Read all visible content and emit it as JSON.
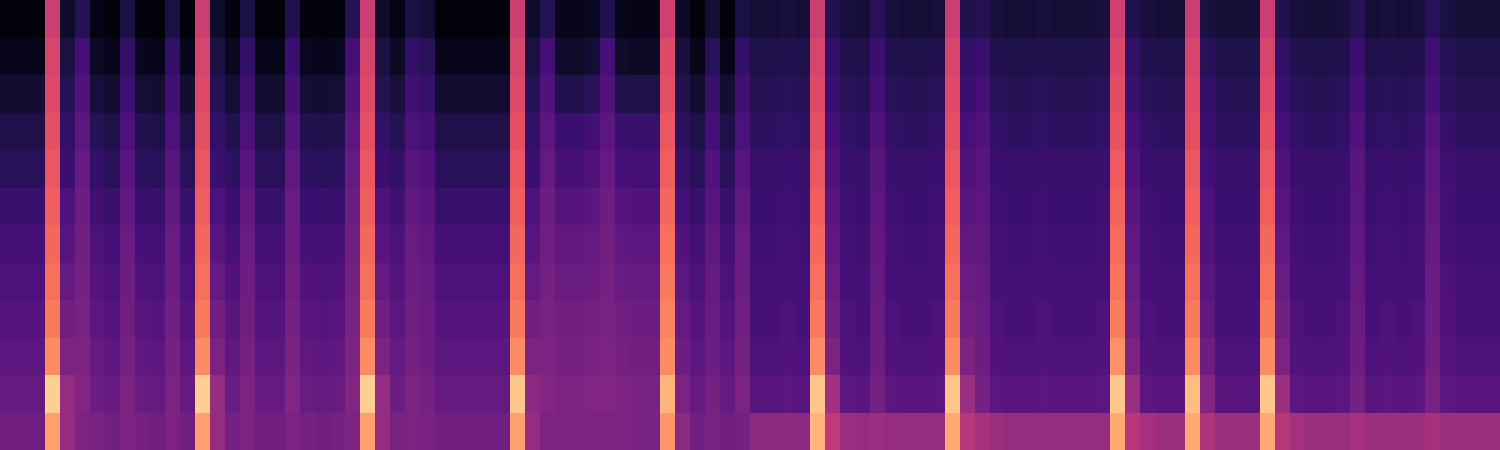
{
  "chart_data": {
    "type": "heatmap",
    "color": "magma",
    "tick_labels": false,
    "zlim": [
      0,
      100
    ],
    "z": [
      [
        2,
        2,
        2,
        55,
        8,
        15,
        4,
        2,
        12,
        3,
        2,
        12,
        2,
        55,
        8,
        3,
        12,
        2,
        2,
        14,
        3,
        2,
        3,
        15,
        55,
        8,
        4,
        12,
        10,
        2,
        2,
        2,
        2,
        2,
        55,
        8,
        15,
        5,
        5,
        6,
        14,
        5,
        4,
        4,
        56,
        7,
        2,
        10,
        2,
        12,
        10,
        10,
        11,
        10,
        55,
        14,
        11,
        10,
        16,
        11,
        10,
        10,
        11,
        55,
        14,
        15,
        11,
        10,
        10,
        11,
        10,
        10,
        10,
        11,
        56,
        14,
        11,
        10,
        10,
        55,
        12,
        10,
        10,
        10,
        55,
        14,
        11,
        10,
        10,
        11,
        15,
        10,
        11,
        10,
        11,
        16,
        12,
        10,
        10,
        10
      ],
      [
        5,
        5,
        5,
        58,
        12,
        22,
        7,
        5,
        18,
        6,
        5,
        18,
        5,
        58,
        12,
        6,
        18,
        5,
        5,
        20,
        6,
        5,
        6,
        22,
        58,
        12,
        7,
        18,
        16,
        5,
        5,
        5,
        5,
        5,
        58,
        12,
        22,
        8,
        8,
        10,
        22,
        8,
        7,
        7,
        60,
        11,
        5,
        16,
        5,
        18,
        13,
        13,
        14,
        13,
        58,
        18,
        14,
        13,
        20,
        14,
        13,
        13,
        14,
        58,
        18,
        20,
        14,
        13,
        13,
        14,
        13,
        13,
        13,
        14,
        59,
        18,
        14,
        13,
        13,
        58,
        16,
        13,
        13,
        13,
        58,
        18,
        14,
        13,
        13,
        14,
        20,
        13,
        14,
        13,
        14,
        21,
        15,
        13,
        13,
        13
      ],
      [
        9,
        9,
        9,
        60,
        15,
        25,
        11,
        9,
        21,
        10,
        9,
        21,
        9,
        60,
        15,
        10,
        21,
        9,
        9,
        23,
        10,
        9,
        10,
        25,
        60,
        15,
        11,
        21,
        19,
        9,
        9,
        9,
        9,
        9,
        60,
        15,
        25,
        14,
        14,
        16,
        25,
        14,
        13,
        13,
        62,
        14,
        9,
        19,
        9,
        21,
        15,
        15,
        16,
        15,
        60,
        20,
        16,
        15,
        22,
        16,
        15,
        15,
        16,
        60,
        20,
        22,
        16,
        15,
        15,
        16,
        15,
        15,
        15,
        16,
        61,
        20,
        16,
        15,
        15,
        60,
        18,
        15,
        15,
        15,
        60,
        20,
        16,
        15,
        15,
        16,
        22,
        15,
        16,
        15,
        16,
        23,
        17,
        15,
        15,
        15
      ],
      [
        13,
        13,
        13,
        62,
        18,
        28,
        15,
        13,
        24,
        14,
        13,
        24,
        13,
        62,
        18,
        14,
        24,
        13,
        13,
        26,
        14,
        13,
        14,
        28,
        62,
        18,
        15,
        24,
        22,
        13,
        13,
        13,
        13,
        13,
        62,
        18,
        28,
        20,
        20,
        22,
        28,
        20,
        19,
        19,
        64,
        17,
        13,
        22,
        13,
        24,
        17,
        17,
        18,
        17,
        62,
        23,
        18,
        17,
        25,
        18,
        17,
        17,
        18,
        62,
        23,
        25,
        18,
        17,
        17,
        18,
        17,
        17,
        17,
        18,
        63,
        23,
        18,
        17,
        17,
        62,
        20,
        17,
        17,
        17,
        62,
        23,
        18,
        17,
        17,
        18,
        25,
        17,
        18,
        17,
        18,
        26,
        19,
        17,
        17,
        17
      ],
      [
        16,
        16,
        16,
        64,
        20,
        30,
        18,
        16,
        27,
        17,
        16,
        27,
        16,
        64,
        20,
        17,
        27,
        16,
        16,
        29,
        17,
        16,
        17,
        30,
        64,
        20,
        18,
        27,
        25,
        16,
        16,
        16,
        16,
        16,
        64,
        20,
        30,
        23,
        23,
        25,
        30,
        23,
        22,
        22,
        66,
        19,
        16,
        25,
        16,
        27,
        19,
        19,
        20,
        19,
        64,
        25,
        20,
        19,
        27,
        20,
        19,
        19,
        20,
        64,
        25,
        27,
        20,
        19,
        19,
        20,
        19,
        19,
        19,
        20,
        65,
        25,
        20,
        19,
        19,
        64,
        22,
        19,
        19,
        19,
        64,
        25,
        20,
        19,
        19,
        20,
        27,
        19,
        20,
        19,
        20,
        28,
        21,
        19,
        19,
        19
      ],
      [
        19,
        19,
        19,
        66,
        24,
        32,
        21,
        19,
        29,
        20,
        19,
        29,
        19,
        66,
        24,
        20,
        29,
        19,
        19,
        31,
        20,
        19,
        20,
        32,
        66,
        24,
        21,
        29,
        27,
        19,
        19,
        19,
        19,
        19,
        66,
        24,
        32,
        26,
        26,
        28,
        32,
        26,
        25,
        25,
        68,
        22,
        19,
        27,
        19,
        29,
        20,
        20,
        21,
        20,
        66,
        27,
        21,
        20,
        28,
        21,
        20,
        20,
        21,
        66,
        27,
        28,
        21,
        20,
        20,
        21,
        20,
        20,
        20,
        21,
        67,
        27,
        21,
        20,
        20,
        66,
        24,
        20,
        20,
        20,
        66,
        27,
        21,
        20,
        20,
        21,
        28,
        20,
        21,
        20,
        21,
        29,
        22,
        20,
        20,
        20
      ],
      [
        22,
        22,
        22,
        68,
        27,
        33,
        24,
        22,
        31,
        23,
        22,
        31,
        22,
        68,
        27,
        23,
        31,
        22,
        22,
        32,
        23,
        22,
        23,
        33,
        68,
        27,
        24,
        31,
        29,
        22,
        22,
        22,
        22,
        22,
        68,
        27,
        33,
        29,
        29,
        30,
        33,
        29,
        28,
        28,
        70,
        25,
        22,
        29,
        22,
        31,
        21,
        21,
        22,
        21,
        68,
        29,
        22,
        21,
        29,
        22,
        21,
        21,
        22,
        68,
        29,
        29,
        22,
        21,
        21,
        22,
        21,
        21,
        21,
        22,
        69,
        29,
        22,
        21,
        21,
        68,
        25,
        21,
        21,
        21,
        68,
        29,
        22,
        21,
        21,
        22,
        29,
        21,
        22,
        21,
        22,
        30,
        23,
        21,
        21,
        21
      ],
      [
        24,
        24,
        24,
        70,
        30,
        34,
        26,
        24,
        32,
        25,
        24,
        32,
        24,
        70,
        30,
        25,
        32,
        24,
        24,
        33,
        25,
        24,
        25,
        34,
        70,
        30,
        26,
        32,
        30,
        24,
        24,
        24,
        24,
        24,
        70,
        30,
        34,
        31,
        31,
        32,
        34,
        31,
        30,
        30,
        72,
        28,
        24,
        30,
        24,
        32,
        22,
        22,
        23,
        22,
        70,
        31,
        23,
        22,
        30,
        23,
        22,
        22,
        23,
        70,
        31,
        30,
        23,
        22,
        22,
        23,
        22,
        22,
        22,
        23,
        71,
        31,
        23,
        22,
        22,
        70,
        27,
        22,
        22,
        22,
        70,
        31,
        23,
        22,
        22,
        23,
        30,
        22,
        23,
        22,
        23,
        31,
        24,
        22,
        22,
        22
      ],
      [
        26,
        26,
        26,
        72,
        33,
        35,
        28,
        26,
        33,
        27,
        26,
        33,
        26,
        72,
        33,
        27,
        33,
        26,
        26,
        34,
        27,
        26,
        27,
        35,
        72,
        33,
        28,
        33,
        31,
        26,
        26,
        26,
        26,
        26,
        72,
        33,
        35,
        33,
        33,
        34,
        35,
        33,
        32,
        32,
        74,
        30,
        26,
        31,
        26,
        33,
        23,
        23,
        24,
        23,
        72,
        33,
        24,
        23,
        31,
        24,
        23,
        23,
        24,
        72,
        33,
        31,
        24,
        23,
        23,
        24,
        23,
        23,
        23,
        24,
        73,
        33,
        24,
        23,
        23,
        72,
        29,
        23,
        23,
        23,
        72,
        33,
        24,
        23,
        23,
        24,
        31,
        23,
        24,
        23,
        24,
        32,
        25,
        23,
        23,
        23
      ],
      [
        28,
        28,
        28,
        76,
        36,
        36,
        30,
        28,
        34,
        29,
        28,
        34,
        28,
        76,
        36,
        29,
        34,
        28,
        28,
        35,
        29,
        28,
        29,
        36,
        76,
        36,
        30,
        34,
        32,
        28,
        28,
        28,
        28,
        28,
        76,
        36,
        36,
        34,
        34,
        35,
        36,
        34,
        33,
        33,
        76,
        32,
        28,
        32,
        28,
        34,
        24,
        24,
        25,
        24,
        76,
        36,
        25,
        24,
        32,
        25,
        24,
        24,
        25,
        76,
        36,
        32,
        25,
        24,
        24,
        25,
        24,
        24,
        24,
        25,
        77,
        36,
        25,
        24,
        24,
        76,
        32,
        24,
        24,
        24,
        76,
        36,
        25,
        24,
        24,
        25,
        32,
        24,
        25,
        24,
        25,
        33,
        26,
        24,
        24,
        24
      ],
      [
        30,
        30,
        30,
        90,
        42,
        38,
        32,
        30,
        36,
        31,
        30,
        36,
        30,
        90,
        42,
        31,
        36,
        30,
        30,
        37,
        31,
        30,
        31,
        38,
        90,
        42,
        32,
        36,
        34,
        30,
        30,
        30,
        30,
        30,
        88,
        40,
        38,
        36,
        36,
        37,
        38,
        36,
        35,
        35,
        84,
        36,
        30,
        34,
        30,
        36,
        27,
        27,
        28,
        27,
        88,
        45,
        28,
        27,
        34,
        28,
        27,
        27,
        28,
        88,
        44,
        34,
        28,
        27,
        27,
        28,
        27,
        27,
        27,
        28,
        88,
        44,
        28,
        27,
        27,
        86,
        38,
        27,
        27,
        27,
        88,
        44,
        28,
        27,
        27,
        28,
        34,
        27,
        28,
        27,
        28,
        35,
        28,
        27,
        27,
        27
      ],
      [
        33,
        33,
        33,
        80,
        42,
        36,
        35,
        33,
        36,
        34,
        33,
        36,
        33,
        80,
        42,
        34,
        36,
        33,
        33,
        36,
        34,
        33,
        34,
        36,
        80,
        42,
        35,
        36,
        35,
        33,
        33,
        33,
        33,
        33,
        80,
        42,
        36,
        36,
        36,
        36,
        36,
        36,
        35,
        35,
        78,
        40,
        33,
        35,
        33,
        34,
        40,
        40,
        40,
        40,
        84,
        52,
        44,
        42,
        44,
        42,
        42,
        42,
        42,
        82,
        50,
        46,
        44,
        42,
        42,
        42,
        42,
        42,
        42,
        42,
        82,
        50,
        46,
        44,
        44,
        82,
        48,
        44,
        44,
        44,
        82,
        50,
        46,
        44,
        44,
        44,
        46,
        44,
        44,
        44,
        44,
        46,
        44,
        44,
        44,
        44
      ]
    ]
  }
}
